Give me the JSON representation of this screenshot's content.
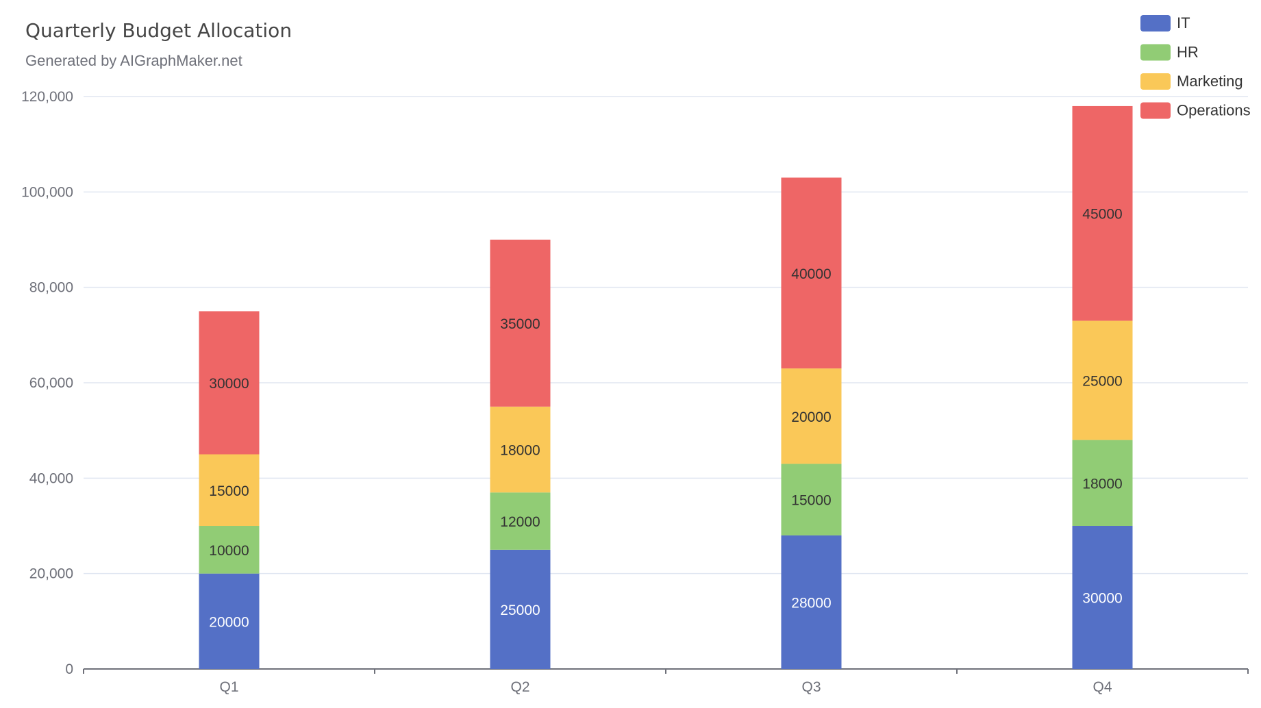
{
  "title": "Quarterly Budget Allocation",
  "subtitle": "Generated by AIGraphMaker.net",
  "colors": {
    "IT": "#5470c6",
    "HR": "#91cc75",
    "Marketing": "#fac858",
    "Operations": "#ee6666",
    "axis": "#6e7079",
    "grid": "#e0e6f1",
    "label_dark": "#333333",
    "label_light": "#ffffff"
  },
  "chart_data": {
    "type": "bar",
    "stacked": true,
    "title": "Quarterly Budget Allocation",
    "subtitle": "Generated by AIGraphMaker.net",
    "categories": [
      "Q1",
      "Q2",
      "Q3",
      "Q4"
    ],
    "series": [
      {
        "name": "IT",
        "values": [
          20000,
          25000,
          28000,
          30000
        ]
      },
      {
        "name": "HR",
        "values": [
          10000,
          12000,
          15000,
          18000
        ]
      },
      {
        "name": "Marketing",
        "values": [
          15000,
          18000,
          20000,
          25000
        ]
      },
      {
        "name": "Operations",
        "values": [
          30000,
          35000,
          40000,
          45000
        ]
      }
    ],
    "yticks": [
      "0",
      "20,000",
      "40,000",
      "60,000",
      "80,000",
      "100,000",
      "120,000"
    ],
    "ylim": [
      0,
      120000
    ],
    "grid": true,
    "legend": "top-right"
  }
}
